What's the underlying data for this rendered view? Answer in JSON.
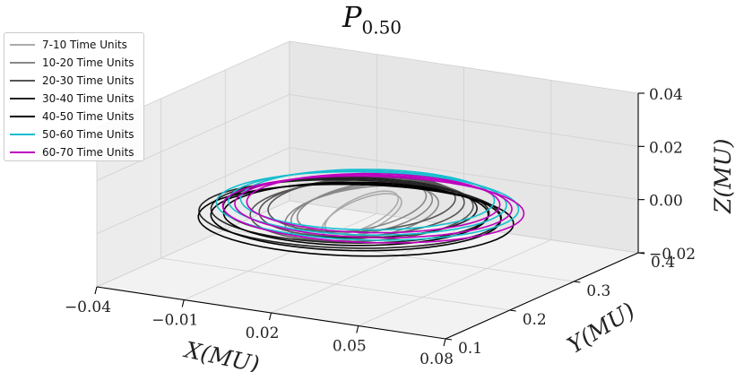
{
  "chart_data": {
    "type": "line",
    "projection": "3d",
    "title_main": "P",
    "title_sub": "0.50",
    "xlabel": "X(MU)",
    "ylabel": "Y(MU)",
    "zlabel": "Z(MU)",
    "xlim": [
      -0.04,
      0.08
    ],
    "ylim": [
      0.1,
      0.4
    ],
    "zlim": [
      -0.02,
      0.04
    ],
    "xticks": [
      "−0.04",
      "−0.01",
      "0.02",
      "0.05",
      "0.08"
    ],
    "yticks": [
      "0.1",
      "0.2",
      "0.3",
      "0.4"
    ],
    "zticks": [
      "−0.02",
      "0.00",
      "0.02",
      "0.04"
    ],
    "grid": true,
    "legend_position": "top-left",
    "series": [
      {
        "name": "7-10 Time Units",
        "color": "#aaaaaa",
        "cx": 0.018,
        "cy": 0.25,
        "rx": 0.012,
        "ry": 0.03,
        "z": 0.0,
        "loops": 2
      },
      {
        "name": "10-20 Time Units",
        "color": "#888888",
        "cx": 0.018,
        "cy": 0.25,
        "rx": 0.024,
        "ry": 0.05,
        "z": 0.001,
        "loops": 3
      },
      {
        "name": "20-30 Time Units",
        "color": "#555555",
        "cx": 0.018,
        "cy": 0.25,
        "rx": 0.036,
        "ry": 0.06,
        "z": 0.002,
        "loops": 3
      },
      {
        "name": "30-40 Time Units",
        "color": "#222222",
        "cx": 0.014,
        "cy": 0.25,
        "rx": 0.05,
        "ry": 0.065,
        "z": 0.0,
        "loops": 3
      },
      {
        "name": "40-50 Time Units",
        "color": "#000000",
        "cx": 0.016,
        "cy": 0.25,
        "rx": 0.052,
        "ry": 0.07,
        "z": -0.002,
        "loops": 3
      },
      {
        "name": "50-60 Time Units",
        "color": "#17becf",
        "cx": 0.02,
        "cy": 0.25,
        "rx": 0.05,
        "ry": 0.065,
        "z": 0.004,
        "loops": 3
      },
      {
        "name": "60-70 Time Units",
        "color": "#bf00bf",
        "cx": 0.022,
        "cy": 0.25,
        "rx": 0.05,
        "ry": 0.062,
        "z": 0.003,
        "loops": 3
      }
    ]
  }
}
